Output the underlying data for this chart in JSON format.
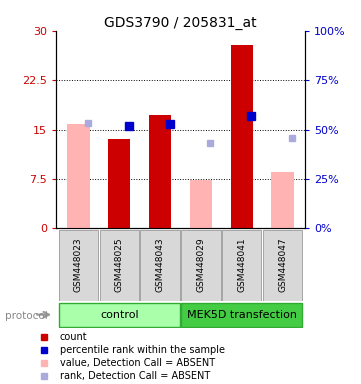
{
  "title": "GDS3790 / 205831_at",
  "samples": [
    "GSM448023",
    "GSM448025",
    "GSM448043",
    "GSM448029",
    "GSM448041",
    "GSM448047"
  ],
  "count_values": [
    null,
    13.5,
    17.2,
    null,
    27.8,
    null
  ],
  "count_absent_values": [
    15.8,
    null,
    null,
    7.4,
    null,
    8.6
  ],
  "rank_values_pct": [
    null,
    52.0,
    53.0,
    null,
    57.0,
    null
  ],
  "rank_absent_values_pct": [
    53.5,
    null,
    null,
    43.0,
    null,
    45.5
  ],
  "ylim_left": [
    0,
    30
  ],
  "ylim_right": [
    0,
    100
  ],
  "yticks_left": [
    0,
    7.5,
    15,
    22.5,
    30
  ],
  "yticks_right": [
    0,
    25,
    50,
    75,
    100
  ],
  "ytick_labels_left": [
    "0",
    "7.5",
    "15",
    "22.5",
    "30"
  ],
  "ytick_labels_right": [
    "0%",
    "25%",
    "50%",
    "75%",
    "100%"
  ],
  "color_count": "#cc0000",
  "color_count_absent": "#ffb3b3",
  "color_rank": "#0000cc",
  "color_rank_absent": "#aaaadd",
  "control_label": "control",
  "mek5d_label": "MEK5D transfection",
  "protocol_label": "protocol",
  "bar_width": 0.55,
  "marker_size": 6
}
